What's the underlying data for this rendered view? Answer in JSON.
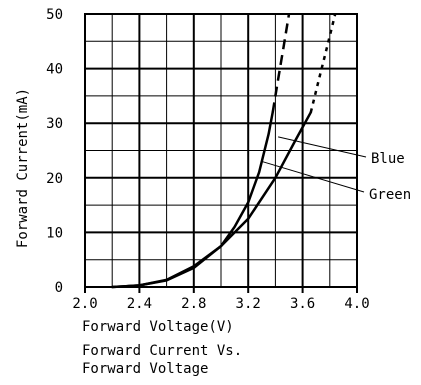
{
  "chart_data": {
    "type": "line",
    "title": "Forward Current Vs. Forward Voltage",
    "caption_lines": [
      "Forward Current Vs.",
      "Forward Voltage"
    ],
    "xlabel": "Forward Voltage(V)",
    "ylabel": "Forward Current(mA)",
    "xlim": [
      2.0,
      4.0
    ],
    "ylim": [
      0,
      50
    ],
    "x_ticks": [
      2.0,
      2.4,
      2.8,
      3.2,
      3.6,
      4.0
    ],
    "x_tick_labels": [
      "2.0",
      "2.4",
      "2.8",
      "3.2",
      "3.6",
      "4.0"
    ],
    "y_ticks": [
      0,
      10,
      20,
      30,
      40,
      50
    ],
    "y_tick_labels": [
      "0",
      "10",
      "20",
      "30",
      "40",
      "50"
    ],
    "grid": true,
    "series": [
      {
        "name": "Blue",
        "color": "#000000",
        "points": [
          [
            2.2,
            0
          ],
          [
            2.4,
            0.3
          ],
          [
            2.6,
            1.2
          ],
          [
            2.8,
            3.5
          ],
          [
            3.0,
            7.5
          ],
          [
            3.1,
            11
          ],
          [
            3.2,
            15.5
          ],
          [
            3.28,
            21
          ],
          [
            3.35,
            28
          ],
          [
            3.38,
            32
          ]
        ],
        "dashed_points": [
          [
            3.38,
            32
          ],
          [
            3.42,
            38
          ],
          [
            3.46,
            44
          ],
          [
            3.5,
            50
          ]
        ]
      },
      {
        "name": "Green",
        "color": "#000000",
        "points": [
          [
            2.2,
            0
          ],
          [
            2.4,
            0.3
          ],
          [
            2.6,
            1.3
          ],
          [
            2.8,
            3.8
          ],
          [
            3.0,
            7.5
          ],
          [
            3.2,
            12.5
          ],
          [
            3.4,
            20
          ],
          [
            3.55,
            27
          ],
          [
            3.66,
            32
          ]
        ],
        "dashed_points": [
          [
            3.66,
            32
          ],
          [
            3.72,
            38
          ],
          [
            3.78,
            44
          ],
          [
            3.84,
            50
          ]
        ]
      }
    ],
    "legend_placement": "right"
  }
}
